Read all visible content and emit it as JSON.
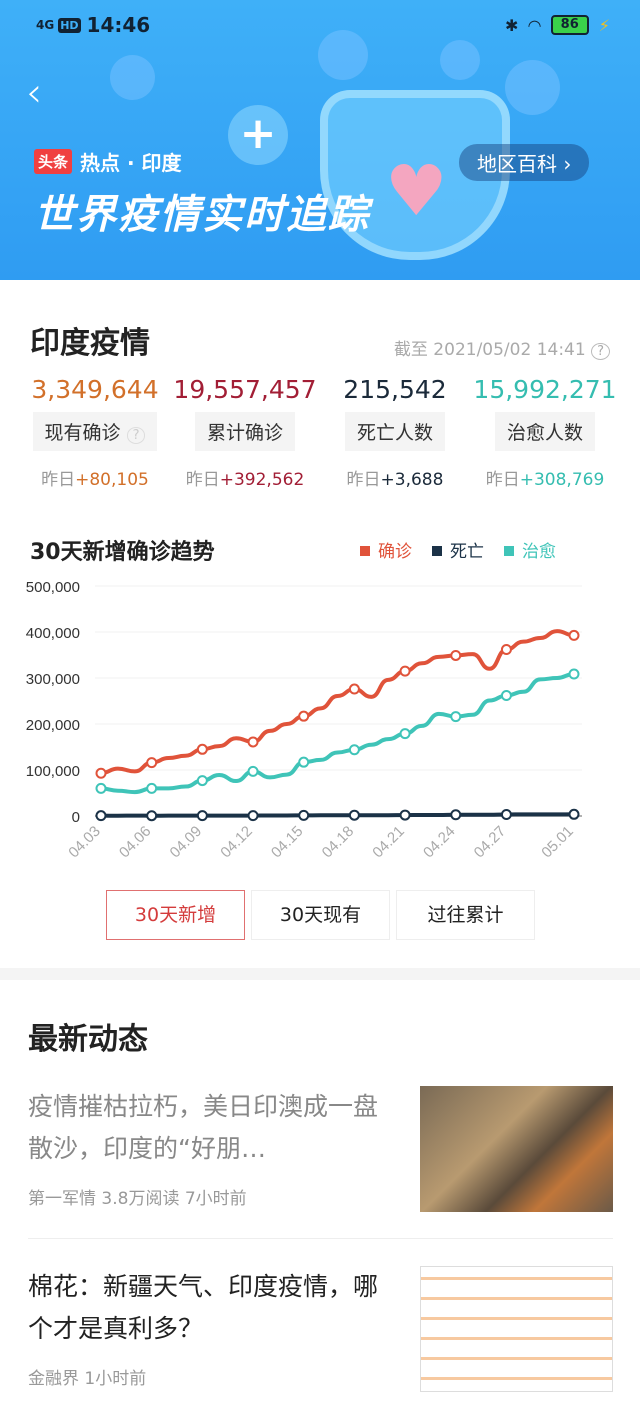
{
  "status_bar": {
    "network": "4G",
    "hd": "HD",
    "time": "14:46",
    "battery": "86"
  },
  "banner": {
    "tag": "头条",
    "topic": "热点 · 印度",
    "title": "世界疫情实时追踪",
    "wiki_button": "地区百科 ›",
    "back": "‹"
  },
  "summary": {
    "title": "印度疫情",
    "as_of": "截至 2021/05/02 14:41",
    "help": "?",
    "stats": [
      {
        "value": "3,349,644",
        "label": "现有确诊",
        "yesterday_prefix": "昨日",
        "yesterday": "+80,105",
        "color": "#d2702a"
      },
      {
        "value": "19,557,457",
        "label": "累计确诊",
        "yesterday_prefix": "昨日",
        "yesterday": "+392,562",
        "color": "#a21e35"
      },
      {
        "value": "215,542",
        "label": "死亡人数",
        "yesterday_prefix": "昨日",
        "yesterday": "+3,688",
        "color": "#1b2a3a"
      },
      {
        "value": "15,992,271",
        "label": "治愈人数",
        "yesterday_prefix": "昨日",
        "yesterday": "+308,769",
        "color": "#35bdb0"
      }
    ]
  },
  "chart_data": {
    "type": "line",
    "title": "30天新增确诊趋势",
    "ylim": [
      0,
      500000
    ],
    "yticks": [
      "0",
      "100,000",
      "200,000",
      "300,000",
      "400,000",
      "500,000"
    ],
    "grid": true,
    "legend_position": "top-right",
    "x": [
      "04.03",
      "04.04",
      "04.05",
      "04.06",
      "04.07",
      "04.08",
      "04.09",
      "04.10",
      "04.11",
      "04.12",
      "04.13",
      "04.14",
      "04.15",
      "04.16",
      "04.17",
      "04.18",
      "04.19",
      "04.20",
      "04.21",
      "04.22",
      "04.23",
      "04.24",
      "04.25",
      "04.26",
      "04.27",
      "04.28",
      "04.29",
      "04.30",
      "05.01"
    ],
    "xticks": [
      "04.03",
      "04.06",
      "04.09",
      "04.12",
      "04.15",
      "04.18",
      "04.21",
      "04.24",
      "04.27",
      "05.01"
    ],
    "series": [
      {
        "name": "确诊",
        "color": "#e0533a",
        "values": [
          93000,
          103000,
          97000,
          116000,
          126000,
          131000,
          145000,
          152000,
          169000,
          161000,
          185000,
          200000,
          217000,
          234000,
          261000,
          276000,
          259000,
          296000,
          315000,
          332000,
          346000,
          349000,
          352000,
          320000,
          362000,
          379000,
          387000,
          402000,
          392562
        ]
      },
      {
        "name": "死亡",
        "color": "#1b3247",
        "values": [
          714,
          630,
          879,
          630,
          685,
          794,
          839,
          780,
          904,
          879,
          1028,
          1185,
          1341,
          1501,
          1619,
          1761,
          1620,
          1761,
          2023,
          2104,
          2263,
          2767,
          2812,
          2771,
          3293,
          3645,
          3498,
          3523,
          3688
        ]
      },
      {
        "name": "治愈",
        "color": "#3fc4b8",
        "values": [
          60000,
          55000,
          52000,
          60000,
          60000,
          64000,
          77000,
          89000,
          76000,
          97000,
          84000,
          90000,
          117000,
          122000,
          138000,
          144000,
          155000,
          167000,
          179000,
          196000,
          222000,
          216000,
          220000,
          251000,
          262000,
          270000,
          297000,
          300000,
          308769
        ]
      }
    ]
  },
  "chart_tabs": [
    {
      "label": "30天新增",
      "active": true
    },
    {
      "label": "30天现有",
      "active": false
    },
    {
      "label": "过往累计",
      "active": false
    }
  ],
  "news": {
    "title": "最新动态",
    "items": [
      {
        "title": "疫情摧枯拉朽，美日印澳成一盘散沙，印度的“好朋…",
        "meta": "第一军情   3.8万阅读   7小时前"
      },
      {
        "title": "棉花：新疆天气、印度疫情，哪个才是真利多？",
        "meta": "金融界   1小时前"
      }
    ]
  }
}
